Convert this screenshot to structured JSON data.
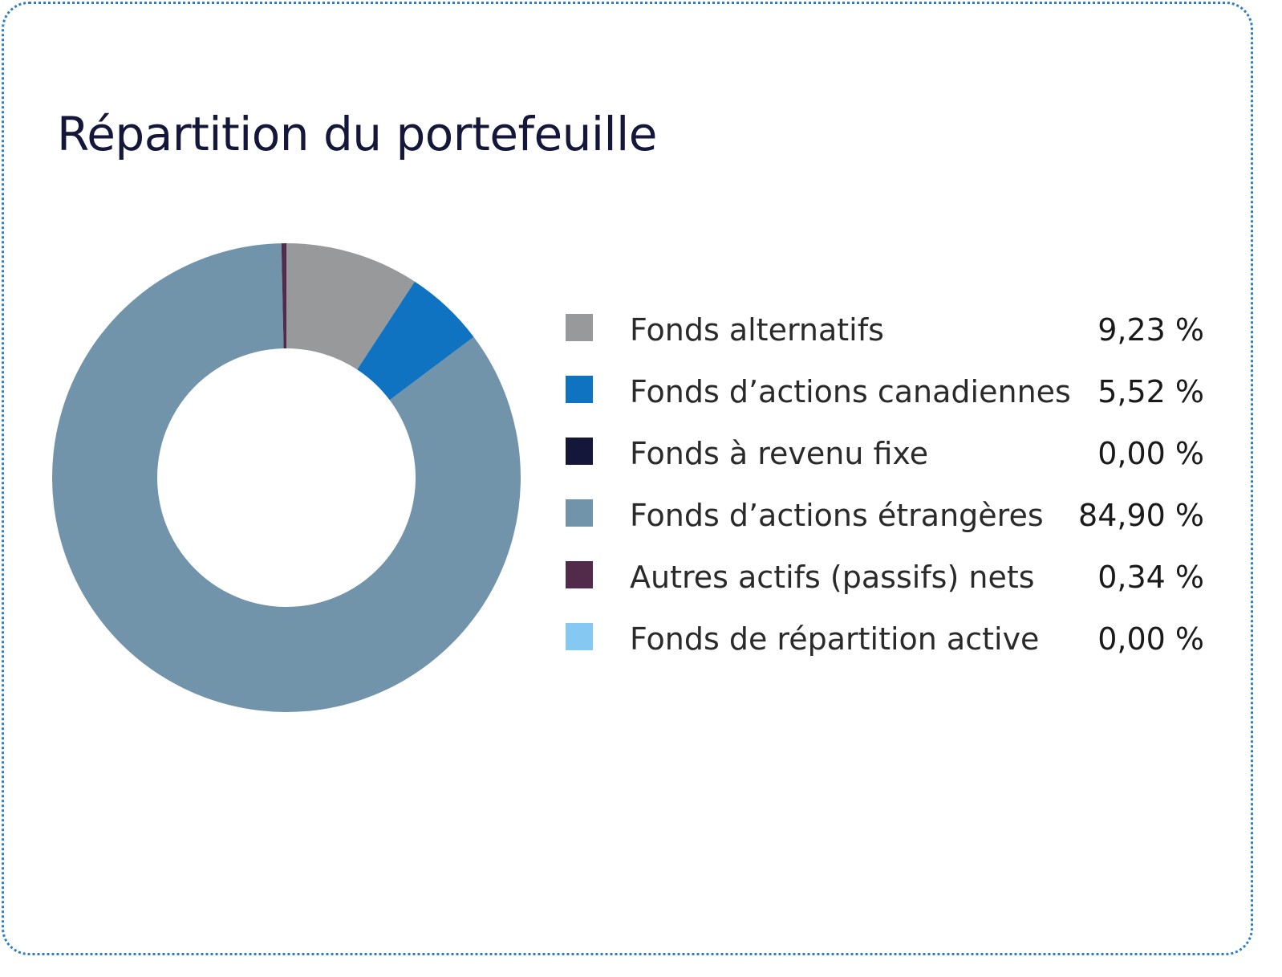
{
  "chart_data": {
    "type": "donut",
    "title": "Répartition du portefeuille",
    "series": [
      {
        "name": "Fonds alternatifs",
        "value": 9.23,
        "label": "9,23 %",
        "color": "#98999b"
      },
      {
        "name": "Fonds d’actions canadiennes",
        "value": 5.52,
        "label": "5,52 %",
        "color": "#0f73c2"
      },
      {
        "name": "Fonds à revenu fixe",
        "value": 0.0,
        "label": "0,00 %",
        "color": "#14163a"
      },
      {
        "name": "Fonds d’actions étrangères",
        "value": 84.9,
        "label": "84,90 %",
        "color": "#7194aa"
      },
      {
        "name": "Autres actifs (passifs) nets",
        "value": 0.34,
        "label": "0,34 %",
        "color": "#532b4a"
      },
      {
        "name": "Fonds de répartition active",
        "value": 0.0,
        "label": "0,00 %",
        "color": "#85c9f2"
      }
    ],
    "legend_position": "right"
  },
  "colors": {
    "border": "#2e7fc1",
    "title": "#14163a",
    "background": "#ffffff"
  }
}
